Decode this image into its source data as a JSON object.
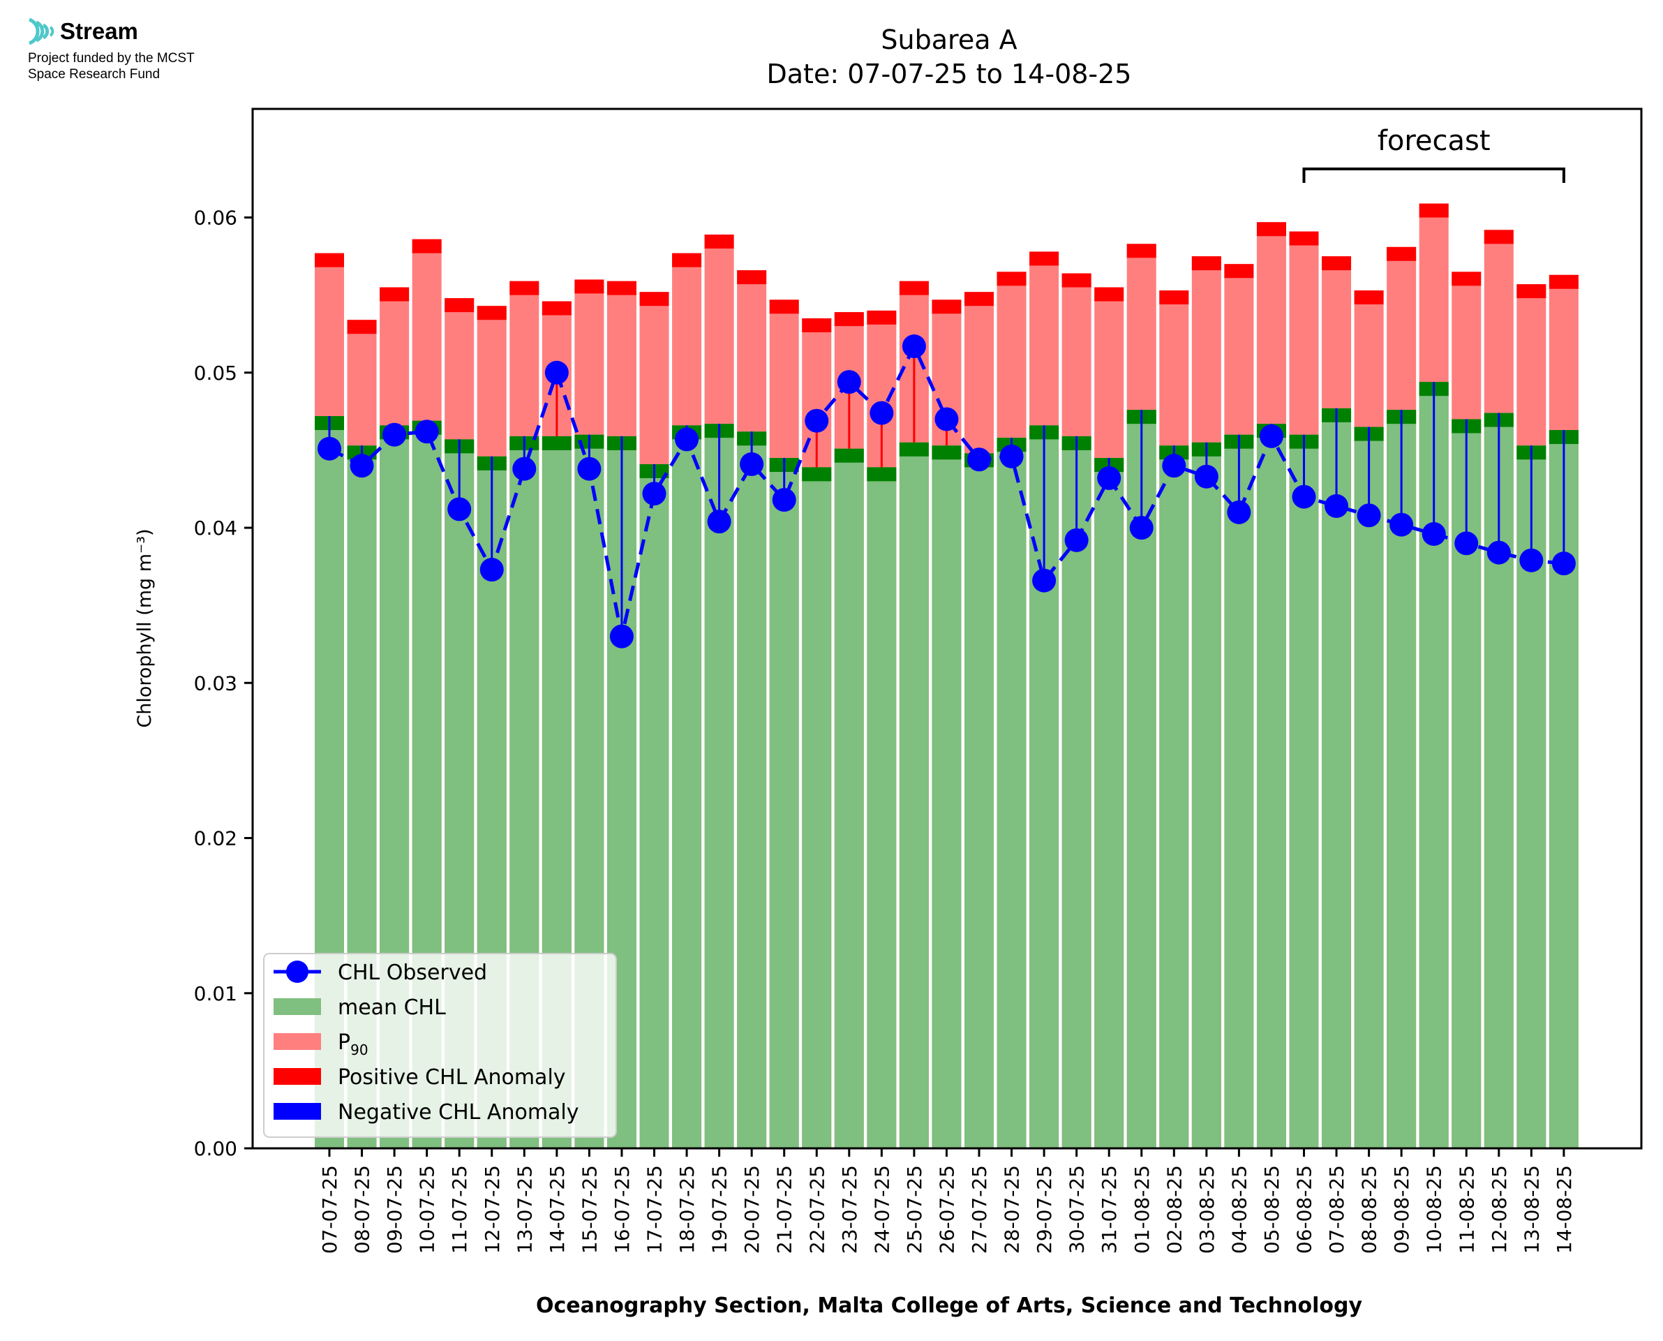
{
  "logo": {
    "name": "Stream",
    "line1": "Project funded by the MCST",
    "line2": "Space Research Fund",
    "color": "#4fc8c8"
  },
  "chart_data": {
    "type": "bar",
    "title": "Subarea A",
    "subtitle": "Date: 07-07-25 to 14-08-25",
    "xlabel": "Oceanography Section, Malta College of Arts, Science and Technology",
    "ylabel": "Chlorophyll (mg m⁻³)",
    "ylim": [
      0,
      0.067
    ],
    "yticks": [
      0.0,
      0.01,
      0.02,
      0.03,
      0.04,
      0.05,
      0.06
    ],
    "ytick_labels": [
      "0.00",
      "0.01",
      "0.02",
      "0.03",
      "0.04",
      "0.05",
      "0.06"
    ],
    "annotation": {
      "text": "forecast",
      "from_category": "06-08-25",
      "to_category": "14-08-25"
    },
    "legend_position": "lower-left",
    "legend": [
      "CHL Observed",
      "mean CHL",
      "P",
      "Positive CHL Anomaly",
      "Negative CHL Anomaly"
    ],
    "legend_subscript": "90",
    "categories": [
      "07-07-25",
      "08-07-25",
      "09-07-25",
      "10-07-25",
      "11-07-25",
      "12-07-25",
      "13-07-25",
      "14-07-25",
      "15-07-25",
      "16-07-25",
      "17-07-25",
      "18-07-25",
      "19-07-25",
      "20-07-25",
      "21-07-25",
      "22-07-25",
      "23-07-25",
      "24-07-25",
      "25-07-25",
      "26-07-25",
      "27-07-25",
      "28-07-25",
      "29-07-25",
      "30-07-25",
      "31-07-25",
      "01-08-25",
      "02-08-25",
      "03-08-25",
      "04-08-25",
      "05-08-25",
      "06-08-25",
      "07-08-25",
      "08-08-25",
      "09-08-25",
      "10-08-25",
      "11-08-25",
      "12-08-25",
      "13-08-25",
      "14-08-25"
    ],
    "series": [
      {
        "name": "mean CHL",
        "values": [
          0.0472,
          0.0453,
          0.0466,
          0.0469,
          0.0457,
          0.0446,
          0.0459,
          0.0459,
          0.046,
          0.0459,
          0.0441,
          0.0466,
          0.0467,
          0.0462,
          0.0445,
          0.0439,
          0.0451,
          0.0439,
          0.0455,
          0.0453,
          0.0448,
          0.0458,
          0.0466,
          0.0459,
          0.0445,
          0.0476,
          0.0453,
          0.0455,
          0.046,
          0.0467,
          0.046,
          0.0477,
          0.0465,
          0.0476,
          0.0494,
          0.047,
          0.0474,
          0.0453,
          0.0463
        ]
      },
      {
        "name": "P90",
        "values": [
          0.0577,
          0.0534,
          0.0555,
          0.0586,
          0.0548,
          0.0543,
          0.0559,
          0.0546,
          0.056,
          0.0559,
          0.0552,
          0.0577,
          0.0589,
          0.0566,
          0.0547,
          0.0535,
          0.0539,
          0.054,
          0.0559,
          0.0547,
          0.0552,
          0.0565,
          0.0578,
          0.0564,
          0.0555,
          0.0583,
          0.0553,
          0.0575,
          0.057,
          0.0597,
          0.0591,
          0.0575,
          0.0553,
          0.0581,
          0.0609,
          0.0565,
          0.0592,
          0.0557,
          0.0563
        ]
      },
      {
        "name": "CHL Observed",
        "values": [
          0.0451,
          0.044,
          0.046,
          0.0462,
          0.0412,
          0.0373,
          0.0438,
          0.05,
          0.0438,
          0.033,
          0.0422,
          0.0457,
          0.0404,
          0.0441,
          0.0418,
          0.0469,
          0.0494,
          0.0474,
          0.0517,
          0.047,
          0.0444,
          0.0446,
          0.0366,
          0.0392,
          0.0432,
          0.04,
          0.044,
          0.0433,
          0.041,
          0.0459,
          0.042,
          0.0414,
          0.0408,
          0.0402,
          0.0396,
          0.039,
          0.0384,
          0.0379,
          0.0377
        ]
      }
    ]
  }
}
